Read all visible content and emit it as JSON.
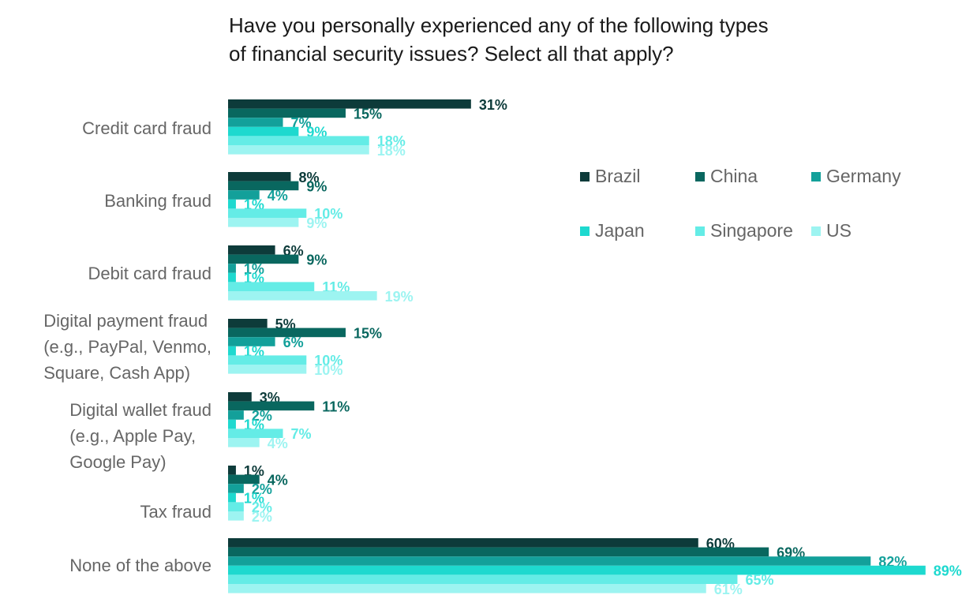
{
  "chart_data": {
    "type": "bar",
    "orientation": "horizontal",
    "title_lines": [
      "Have you personally experienced any of the following types",
      "of financial security issues? Select all that apply?"
    ],
    "categories": [
      [
        "Credit card fraud"
      ],
      [
        "Banking fraud"
      ],
      [
        "Debit card fraud"
      ],
      [
        "Digital payment fraud",
        "(e.g., PayPal, Venmo,",
        "Square, Cash App)"
      ],
      [
        "Digital wallet fraud",
        "(e.g., Apple Pay,",
        "Google Pay)"
      ],
      [
        "Tax fraud"
      ],
      [
        "None of the above"
      ]
    ],
    "series": [
      {
        "name": "Brazil",
        "color": "#0d3b3a",
        "values": [
          31,
          8,
          6,
          5,
          3,
          1,
          60
        ]
      },
      {
        "name": "China",
        "color": "#09675f",
        "values": [
          15,
          9,
          9,
          15,
          11,
          4,
          69
        ]
      },
      {
        "name": "Germany",
        "color": "#13a09a",
        "values": [
          7,
          4,
          1,
          6,
          2,
          2,
          82
        ]
      },
      {
        "name": "Japan",
        "color": "#1ed9cf",
        "values": [
          9,
          1,
          1,
          1,
          1,
          1,
          89
        ]
      },
      {
        "name": "Singapore",
        "color": "#64ece6",
        "values": [
          18,
          10,
          11,
          10,
          7,
          2,
          65
        ]
      },
      {
        "name": "US",
        "color": "#9df4f1",
        "values": [
          18,
          9,
          19,
          10,
          4,
          2,
          61
        ]
      }
    ],
    "value_suffix": "%",
    "legend_position": "top-right",
    "grid": false
  }
}
